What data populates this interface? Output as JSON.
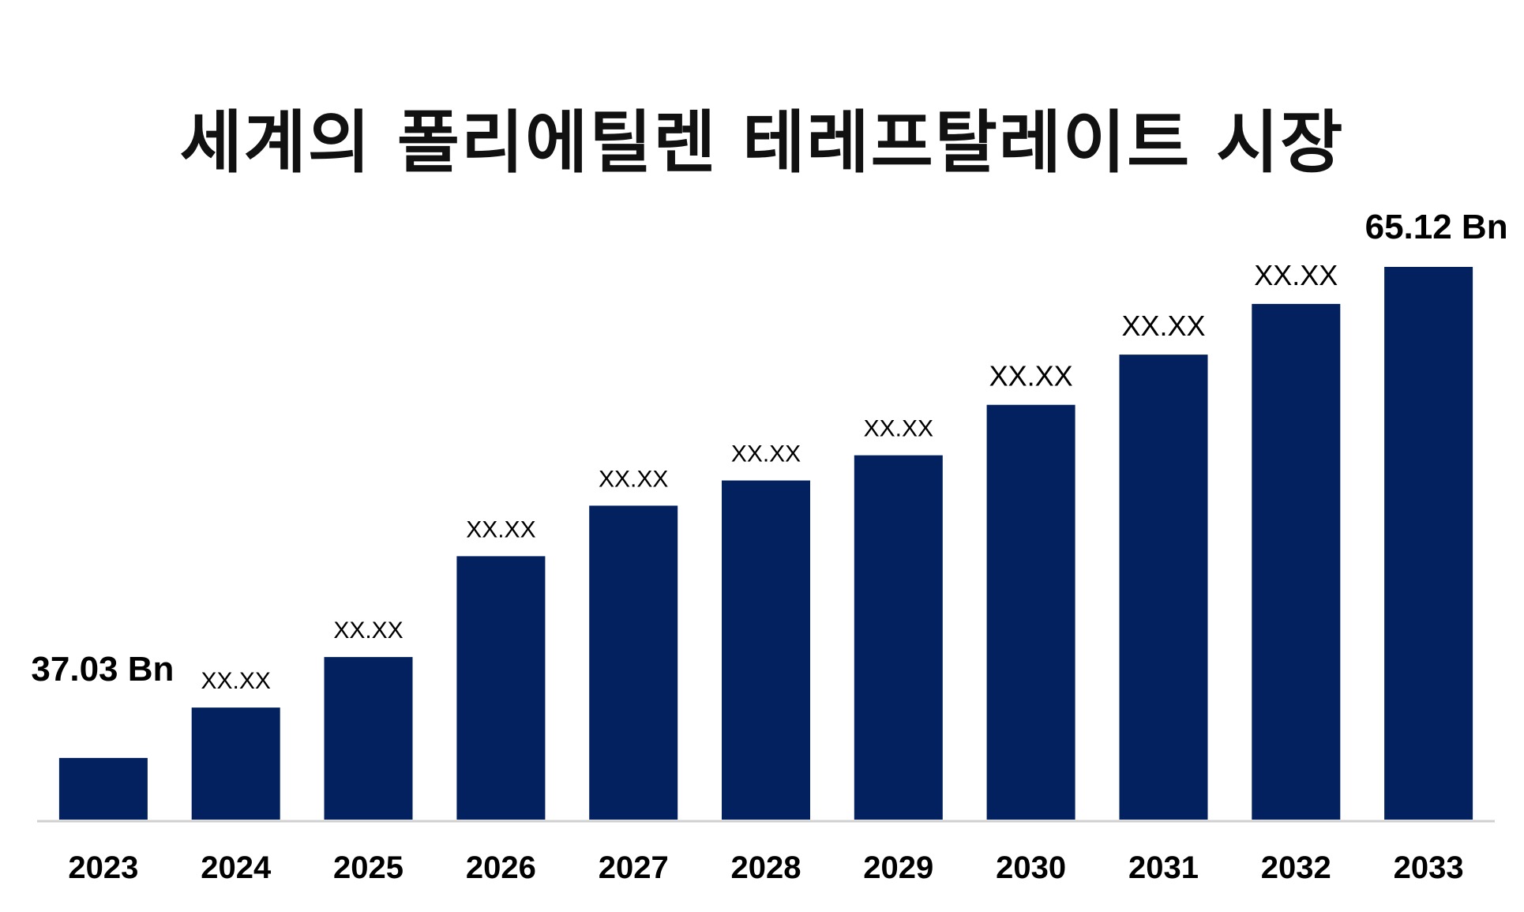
{
  "chart_data": {
    "type": "bar",
    "title": "세계의 폴리에틸렌 테레프탈레이트 시장",
    "xlabel": "",
    "ylabel": "",
    "categories": [
      "2023",
      "2024",
      "2025",
      "2026",
      "2027",
      "2028",
      "2029",
      "2030",
      "2031",
      "2032",
      "2033"
    ],
    "values": [
      37.03,
      39.91,
      42.8,
      48.57,
      51.46,
      52.9,
      54.34,
      57.23,
      60.1,
      63.0,
      65.12
    ],
    "data_labels": [
      "37.03 Bn",
      "XX.XX",
      "XX.XX",
      "XX.XX",
      "XX.XX",
      "XX.XX",
      "XX.XX",
      "XX.XX",
      "XX.XX",
      "XX.XX",
      "65.12 Bn"
    ],
    "ylim": [
      30,
      67
    ],
    "grid": false,
    "legend": "none",
    "bar_color": "#03215e"
  }
}
